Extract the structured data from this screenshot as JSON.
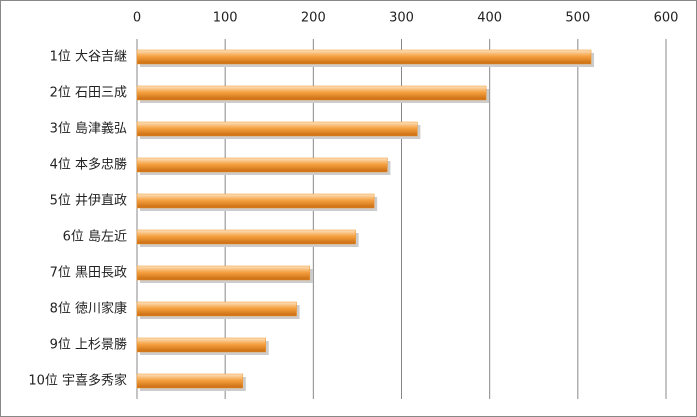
{
  "chart_data": {
    "type": "bar",
    "orientation": "horizontal",
    "categories": [
      "1位 大谷吉継",
      "2位 石田三成",
      "3位 島津義弘",
      "4位 本多忠勝",
      "5位 井伊直政",
      "6位 島左近",
      "7位 黒田長政",
      "8位 徳川家康",
      "9位 上杉景勝",
      "10位 宇喜多秀家"
    ],
    "values": [
      515,
      396,
      318,
      284,
      269,
      248,
      196,
      181,
      146,
      120
    ],
    "color": "#f0962e",
    "xlim": [
      0,
      600
    ],
    "xticks": [
      0,
      100,
      200,
      300,
      400,
      500,
      600
    ],
    "grid": true
  }
}
